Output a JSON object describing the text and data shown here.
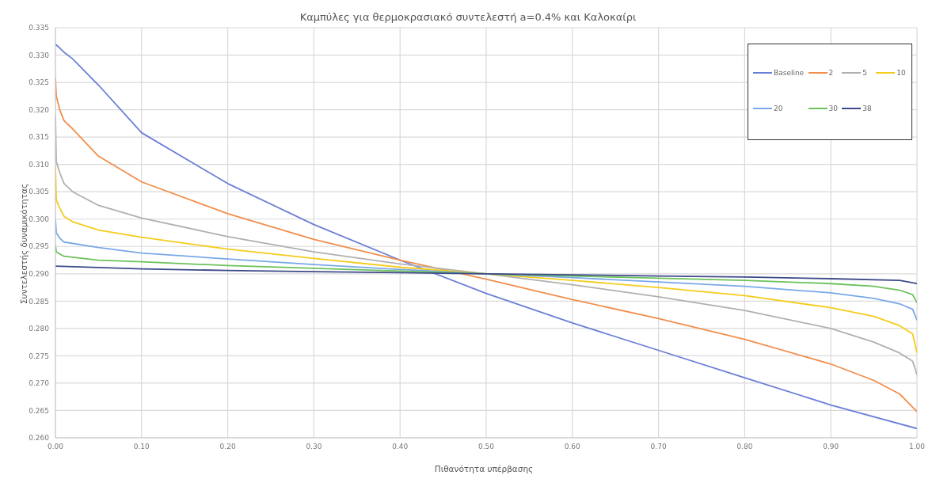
{
  "chart_data": {
    "type": "line",
    "title": "Καμπύλες για θερμοκρασιακό συντελεστή a=0.4% και Καλοκαίρι",
    "xlabel": "Πιθανότητα υπέρβασης",
    "ylabel": "Συντελεστής δυναμικότητας",
    "xlim": [
      0,
      1
    ],
    "xticks": [
      {
        "value": 0,
        "label": "0.00"
      },
      {
        "value": 0.1,
        "label": "0.10"
      },
      {
        "value": 0.2,
        "label": "0.20"
      },
      {
        "value": 0.3,
        "label": "0.30"
      },
      {
        "value": 0.4,
        "label": "0.40"
      },
      {
        "value": 0.5,
        "label": "0.50"
      },
      {
        "value": 0.6,
        "label": "0.60"
      },
      {
        "value": 0.7,
        "label": "0.70"
      },
      {
        "value": 0.8,
        "label": "0.80"
      },
      {
        "value": 0.9,
        "label": "0.90"
      },
      {
        "value": 1,
        "label": "1.00"
      }
    ],
    "ylim": [
      0.26,
      0.335
    ],
    "yticks": [
      {
        "value": 0.26,
        "label": "0.260"
      },
      {
        "value": 0.265,
        "label": "0.265"
      },
      {
        "value": 0.27,
        "label": "0.270"
      },
      {
        "value": 0.275,
        "label": "0.275"
      },
      {
        "value": 0.28,
        "label": "0.280"
      },
      {
        "value": 0.285,
        "label": "0.285"
      },
      {
        "value": 0.29,
        "label": "0.290"
      },
      {
        "value": 0.295,
        "label": "0.295"
      },
      {
        "value": 0.3,
        "label": "0.300"
      },
      {
        "value": 0.305,
        "label": "0.305"
      },
      {
        "value": 0.31,
        "label": "0.310"
      },
      {
        "value": 0.315,
        "label": "0.315"
      },
      {
        "value": 0.32,
        "label": "0.320"
      },
      {
        "value": 0.325,
        "label": "0.325"
      },
      {
        "value": 0.33,
        "label": "0.330"
      },
      {
        "value": 0.335,
        "label": "0.335"
      }
    ],
    "grid": true,
    "legend": "top right",
    "marker": "none",
    "line_style": "solid",
    "series": [
      {
        "name": "Baseline",
        "color": "#6b7fd7",
        "x": [
          0,
          0.005,
          0.01,
          0.02,
          0.05,
          0.1,
          0.2,
          0.3,
          0.4,
          0.5,
          0.6,
          0.7,
          0.8,
          0.9,
          1
        ],
        "values": [
          0.332,
          0.3313,
          0.3305,
          0.3293,
          0.3245,
          0.3158,
          0.3065,
          0.299,
          0.2925,
          0.2864,
          0.281,
          0.276,
          0.271,
          0.266,
          0.2617
        ]
      },
      {
        "name": "2",
        "color": "#f28e4c",
        "x": [
          0,
          0.001,
          0.005,
          0.01,
          0.02,
          0.05,
          0.1,
          0.2,
          0.3,
          0.4,
          0.5,
          0.6,
          0.7,
          0.8,
          0.9,
          0.95,
          0.98,
          1
        ],
        "values": [
          0.3258,
          0.3225,
          0.32,
          0.318,
          0.3165,
          0.3115,
          0.3068,
          0.301,
          0.2963,
          0.2925,
          0.289,
          0.2853,
          0.2818,
          0.278,
          0.2735,
          0.2705,
          0.268,
          0.2648
        ]
      },
      {
        "name": "5",
        "color": "#b0b0b0",
        "x": [
          0,
          0.001,
          0.005,
          0.01,
          0.02,
          0.05,
          0.1,
          0.2,
          0.3,
          0.4,
          0.5,
          0.6,
          0.7,
          0.8,
          0.9,
          0.95,
          0.98,
          0.995,
          1
        ],
        "values": [
          0.319,
          0.3105,
          0.3085,
          0.3065,
          0.305,
          0.3025,
          0.3002,
          0.2968,
          0.294,
          0.2918,
          0.29,
          0.288,
          0.2858,
          0.2833,
          0.28,
          0.2775,
          0.2755,
          0.274,
          0.2715
        ]
      },
      {
        "name": "10",
        "color": "#f5cc1c",
        "x": [
          0,
          0.001,
          0.005,
          0.01,
          0.02,
          0.05,
          0.1,
          0.2,
          0.3,
          0.4,
          0.5,
          0.6,
          0.7,
          0.8,
          0.9,
          0.95,
          0.98,
          0.995,
          1
        ],
        "values": [
          0.3097,
          0.3035,
          0.302,
          0.3005,
          0.2995,
          0.298,
          0.2967,
          0.2945,
          0.2928,
          0.2912,
          0.29,
          0.2888,
          0.2875,
          0.286,
          0.2838,
          0.2822,
          0.2805,
          0.279,
          0.2755
        ]
      },
      {
        "name": "20",
        "color": "#7aa8e8",
        "x": [
          0,
          0.001,
          0.005,
          0.01,
          0.05,
          0.1,
          0.2,
          0.3,
          0.4,
          0.5,
          0.6,
          0.7,
          0.8,
          0.9,
          0.95,
          0.98,
          0.995,
          1
        ],
        "values": [
          0.3,
          0.2975,
          0.2965,
          0.2958,
          0.2948,
          0.2938,
          0.2927,
          0.2917,
          0.2908,
          0.29,
          0.2893,
          0.2885,
          0.2877,
          0.2865,
          0.2855,
          0.2845,
          0.2835,
          0.2815
        ]
      },
      {
        "name": "30",
        "color": "#6cc25a",
        "x": [
          0,
          0.001,
          0.01,
          0.05,
          0.1,
          0.2,
          0.3,
          0.4,
          0.5,
          0.6,
          0.7,
          0.8,
          0.9,
          0.95,
          0.98,
          0.995,
          1
        ],
        "values": [
          0.2952,
          0.294,
          0.2932,
          0.2925,
          0.2922,
          0.2915,
          0.291,
          0.2905,
          0.29,
          0.2896,
          0.2892,
          0.2888,
          0.2882,
          0.2877,
          0.287,
          0.2862,
          0.2847
        ]
      },
      {
        "name": "38",
        "color": "#3d4a8a",
        "x": [
          0,
          0.1,
          0.2,
          0.3,
          0.4,
          0.5,
          0.6,
          0.7,
          0.8,
          0.9,
          0.98,
          1
        ],
        "values": [
          0.2914,
          0.2909,
          0.2906,
          0.2904,
          0.2902,
          0.29,
          0.2898,
          0.2896,
          0.2894,
          0.2891,
          0.2888,
          0.2882
        ]
      }
    ]
  }
}
